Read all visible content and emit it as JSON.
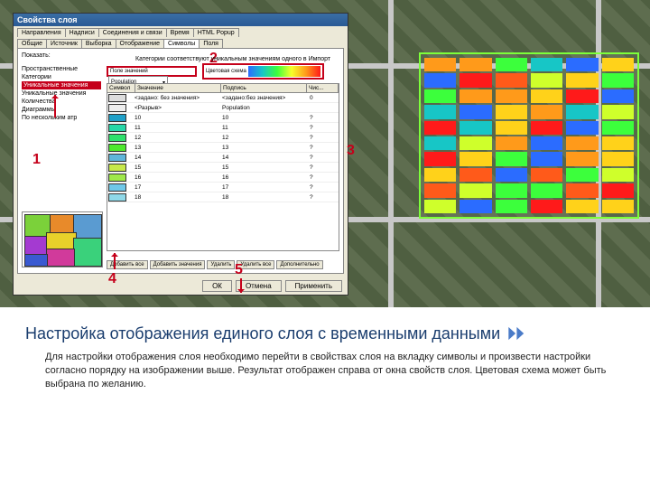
{
  "dialog": {
    "title": "Свойства слоя",
    "label_top": "Категории соответствуют уникальным значениям одного в   Импорт",
    "tabs_row1": [
      "Направления",
      "Надписи",
      "Соединения и связи",
      "Время",
      "HTML Popup"
    ],
    "tabs_row2": [
      "Общие",
      "Источник",
      "Выборка",
      "Отображение",
      "Символы",
      "Поля"
    ],
    "active_tab": "Символы",
    "sidebar": {
      "heading": "Показать:",
      "items": [
        "Пространственные",
        "Категории",
        "Уникальные значения",
        "Уникальные значения",
        "Количества",
        "Диаграммы",
        "По нескольким атр"
      ],
      "selected_index": 2
    },
    "field": {
      "label": "Поле значений",
      "value": "Population"
    },
    "ramp_label": "Цветовая схема",
    "table": {
      "headers": [
        "Символ",
        "Значение",
        "Подпись",
        "Чис..."
      ],
      "rows": [
        {
          "c": "#dddddd",
          "v": "<задано: без значения>",
          "l": "<задано:без значения>",
          "n": "0"
        },
        {
          "c": "#eeeeee",
          "v": "<Разрыв>",
          "l": "Population",
          "n": ""
        },
        {
          "c": "#1fa0c8",
          "v": "10",
          "l": "10",
          "n": "?"
        },
        {
          "c": "#26d7a8",
          "v": "11",
          "l": "11",
          "n": "?"
        },
        {
          "c": "#2ee06c",
          "v": "12",
          "l": "12",
          "n": "?"
        },
        {
          "c": "#4ee82e",
          "v": "13",
          "l": "13",
          "n": "?"
        },
        {
          "c": "#5fb6da",
          "v": "14",
          "l": "14",
          "n": "?"
        },
        {
          "c": "#c7e84a",
          "v": "15",
          "l": "15",
          "n": "?"
        },
        {
          "c": "#9fe84a",
          "v": "16",
          "l": "16",
          "n": "?"
        },
        {
          "c": "#6fc8e8",
          "v": "17",
          "l": "17",
          "n": "?"
        },
        {
          "c": "#8fd8e8",
          "v": "18",
          "l": "18",
          "n": "?"
        }
      ]
    },
    "small_buttons": [
      "Добавить все",
      "Добавить значения",
      "Удалить",
      "Удалить все",
      "Дополнительно"
    ],
    "footer_buttons": [
      "ОК",
      "Отмена",
      "Применить"
    ],
    "minimap_colors": [
      "#7bd13a",
      "#e88a2a",
      "#5a9bd1",
      "#a43ad1",
      "#e8d12a",
      "#3ad17b",
      "#d13a9b",
      "#3a5ad1"
    ]
  },
  "callouts": {
    "c1": "1",
    "c2": "2",
    "c3": "3",
    "c4": "4",
    "c5": "5"
  },
  "heatmap": {
    "palette": [
      "#2b6cff",
      "#17c6c6",
      "#3cff3c",
      "#cfff2b",
      "#ffd21a",
      "#ff9a1a",
      "#ff5a1a",
      "#ff1a1a"
    ]
  },
  "text": {
    "heading": "Настройка отображения единого слоя с временными данными",
    "body": "Для настройки отображения слоя необходимо перейти в свойствах слоя на вкладку символы и произвести настройки согласно порядку на изображении выше. Результат отображен справа от окна свойств слоя. Цветовая схема может быть выбрана по желанию."
  }
}
